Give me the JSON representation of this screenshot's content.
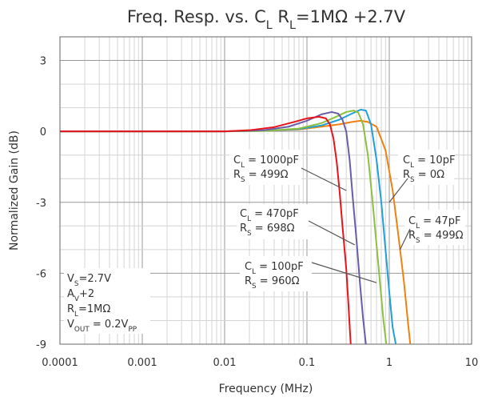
{
  "chart_data": {
    "type": "line",
    "title": {
      "parts": [
        {
          "text": "Freq. Resp. vs. C"
        },
        {
          "text": "L",
          "sub": true
        },
        {
          "text": " R"
        },
        {
          "text": "L",
          "sub": true
        },
        {
          "text": "=1MΩ +2.7V"
        }
      ]
    },
    "xlabel": "Frequency (MHz)",
    "ylabel": "Normalized Gain (dB)",
    "xscale": "log",
    "xlim": [
      0.0001,
      10
    ],
    "ylim": [
      -9,
      4
    ],
    "xticks": [
      {
        "value": 0.0001,
        "label": "0.0001"
      },
      {
        "value": 0.001,
        "label": "0.001"
      },
      {
        "value": 0.01,
        "label": "0.01"
      },
      {
        "value": 0.1,
        "label": "0.1"
      },
      {
        "value": 1,
        "label": "1"
      },
      {
        "value": 10,
        "label": "10"
      }
    ],
    "yticks": [
      {
        "value": 3,
        "label": "3"
      },
      {
        "value": 0,
        "label": "0"
      },
      {
        "value": -3,
        "label": "-3"
      },
      {
        "value": -6,
        "label": "-6"
      },
      {
        "value": -9,
        "label": "-9"
      }
    ],
    "grid": true,
    "series": [
      {
        "color": "#f08010",
        "x": [
          0.0001,
          0.01,
          0.03,
          0.08,
          0.15,
          0.25,
          0.35,
          0.45,
          0.55,
          0.7,
          0.9,
          1.1,
          1.3,
          1.5,
          1.7,
          1.8
        ],
        "y": [
          0,
          0,
          0.02,
          0.08,
          0.2,
          0.3,
          0.4,
          0.45,
          0.4,
          0.2,
          -0.8,
          -2.5,
          -4.5,
          -6.3,
          -8.2,
          -9
        ]
      },
      {
        "color": "#1fa0d8",
        "x": [
          0.0001,
          0.01,
          0.03,
          0.08,
          0.15,
          0.25,
          0.35,
          0.45,
          0.52,
          0.6,
          0.7,
          0.8,
          0.9,
          1.0,
          1.1,
          1.2
        ],
        "y": [
          0,
          0,
          0.02,
          0.1,
          0.25,
          0.5,
          0.75,
          0.92,
          0.88,
          0.3,
          -1.2,
          -3.0,
          -5.0,
          -6.8,
          -8.3,
          -9
        ]
      },
      {
        "color": "#8cc040",
        "x": [
          0.0001,
          0.01,
          0.03,
          0.08,
          0.15,
          0.22,
          0.3,
          0.37,
          0.42,
          0.48,
          0.55,
          0.62,
          0.7,
          0.78,
          0.85,
          0.92
        ],
        "y": [
          0,
          0,
          0.02,
          0.12,
          0.35,
          0.6,
          0.82,
          0.88,
          0.8,
          0.3,
          -1.0,
          -2.8,
          -4.8,
          -6.6,
          -8.0,
          -9
        ]
      },
      {
        "color": "#6a5ca8",
        "x": [
          0.0001,
          0.01,
          0.03,
          0.06,
          0.1,
          0.15,
          0.2,
          0.24,
          0.27,
          0.3,
          0.33,
          0.36,
          0.4,
          0.44,
          0.48,
          0.52
        ],
        "y": [
          0,
          0,
          0.05,
          0.2,
          0.45,
          0.72,
          0.82,
          0.75,
          0.5,
          0.0,
          -1.2,
          -2.8,
          -4.6,
          -6.4,
          -7.9,
          -9
        ]
      },
      {
        "color": "#e8141c",
        "x": [
          0.0001,
          0.01,
          0.02,
          0.04,
          0.07,
          0.1,
          0.14,
          0.17,
          0.19,
          0.21,
          0.23,
          0.25,
          0.27,
          0.3,
          0.32,
          0.34
        ],
        "y": [
          0,
          0,
          0.05,
          0.18,
          0.4,
          0.55,
          0.62,
          0.55,
          0.3,
          -0.3,
          -1.3,
          -2.6,
          -4.0,
          -5.8,
          -7.4,
          -9
        ]
      }
    ],
    "annotations": [
      {
        "lines": [
          [
            {
              "t": "C"
            },
            {
              "t": "L",
              "sub": true
            },
            {
              "t": " = 1000pF"
            }
          ],
          [
            {
              "t": "R"
            },
            {
              "t": "S",
              "sub": true
            },
            {
              "t": " = 499Ω"
            }
          ]
        ],
        "pointer": [
          0.3,
          -2.5
        ]
      },
      {
        "lines": [
          [
            {
              "t": "C"
            },
            {
              "t": "L",
              "sub": true
            },
            {
              "t": " = 470pF"
            }
          ],
          [
            {
              "t": "R"
            },
            {
              "t": "S",
              "sub": true
            },
            {
              "t": " = 698Ω"
            }
          ]
        ],
        "pointer": [
          0.38,
          -4.8
        ]
      },
      {
        "lines": [
          [
            {
              "t": "C"
            },
            {
              "t": "L",
              "sub": true
            },
            {
              "t": " = 100pF"
            }
          ],
          [
            {
              "t": "R"
            },
            {
              "t": "S",
              "sub": true
            },
            {
              "t": " = 960Ω"
            }
          ]
        ],
        "pointer": [
          0.7,
          -6.4
        ]
      },
      {
        "lines": [
          [
            {
              "t": "C"
            },
            {
              "t": "L",
              "sub": true
            },
            {
              "t": " = 10pF"
            }
          ],
          [
            {
              "t": "R"
            },
            {
              "t": "S",
              "sub": true
            },
            {
              "t": " = 0Ω"
            }
          ]
        ],
        "pointer": [
          1.0,
          -3.0
        ]
      },
      {
        "lines": [
          [
            {
              "t": "C"
            },
            {
              "t": "L",
              "sub": true
            },
            {
              "t": " = 47pF"
            }
          ],
          [
            {
              "t": "R"
            },
            {
              "t": "S",
              "sub": true
            },
            {
              "t": " = 499Ω"
            }
          ]
        ],
        "pointer": [
          1.35,
          -5.0
        ]
      },
      {
        "lines": [
          [
            {
              "t": "V"
            },
            {
              "t": "S",
              "sub": true
            },
            {
              "t": "=2.7V"
            }
          ],
          [
            {
              "t": "A"
            },
            {
              "t": "V",
              "sub": true
            },
            {
              "t": "+2"
            }
          ],
          [
            {
              "t": "R"
            },
            {
              "t": "L",
              "sub": true
            },
            {
              "t": "=1MΩ"
            }
          ],
          [
            {
              "t": "V"
            },
            {
              "t": "OUT",
              "sub": true
            },
            {
              "t": " = 0.2V"
            },
            {
              "t": "PP",
              "sub": true
            }
          ]
        ]
      }
    ]
  }
}
